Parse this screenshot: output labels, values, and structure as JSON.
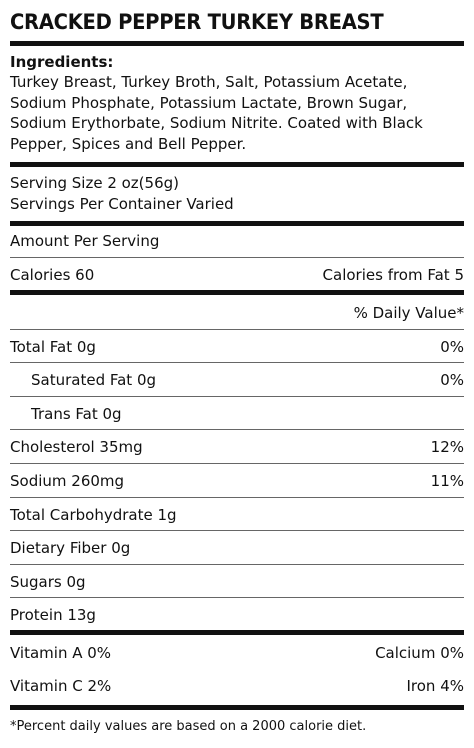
{
  "title": "CRACKED PEPPER TURKEY BREAST",
  "ingredients": {
    "heading": "Ingredients:",
    "text": "Turkey Breast, Turkey Broth, Salt, Potassium Acetate, Sodium Phosphate, Potassium Lactate, Brown Sugar, Sodium Erythorbate, Sodium Nitrite. Coated with Black Pepper, Spices and Bell Pepper."
  },
  "serving": {
    "size": "Serving Size 2 oz(56g)",
    "per_container": "Servings Per Container Varied"
  },
  "amount_per_serving": "Amount Per Serving",
  "calories": {
    "label": "Calories 60",
    "from_fat": "Calories from Fat 5"
  },
  "daily_value_header": "% Daily Value*",
  "nutrients": [
    {
      "label": "Total Fat 0g",
      "dv": "0%"
    },
    {
      "label": "Saturated Fat 0g",
      "dv": "0%"
    },
    {
      "label": "Trans Fat 0g",
      "dv": ""
    },
    {
      "label": "Cholesterol 35mg",
      "dv": "12%"
    },
    {
      "label": "Sodium 260mg",
      "dv": "11%"
    },
    {
      "label": "Total Carbohydrate 1g",
      "dv": ""
    },
    {
      "label": "Dietary Fiber 0g",
      "dv": ""
    },
    {
      "label": "Sugars 0g",
      "dv": ""
    },
    {
      "label": "Protein 13g",
      "dv": ""
    }
  ],
  "vitamins": [
    {
      "left": "Vitamin A 0%",
      "right": "Calcium 0%"
    },
    {
      "left": "Vitamin C 2%",
      "right": "Iron 4%"
    }
  ],
  "footnote": "*Percent daily values are based on a 2000 calorie diet."
}
